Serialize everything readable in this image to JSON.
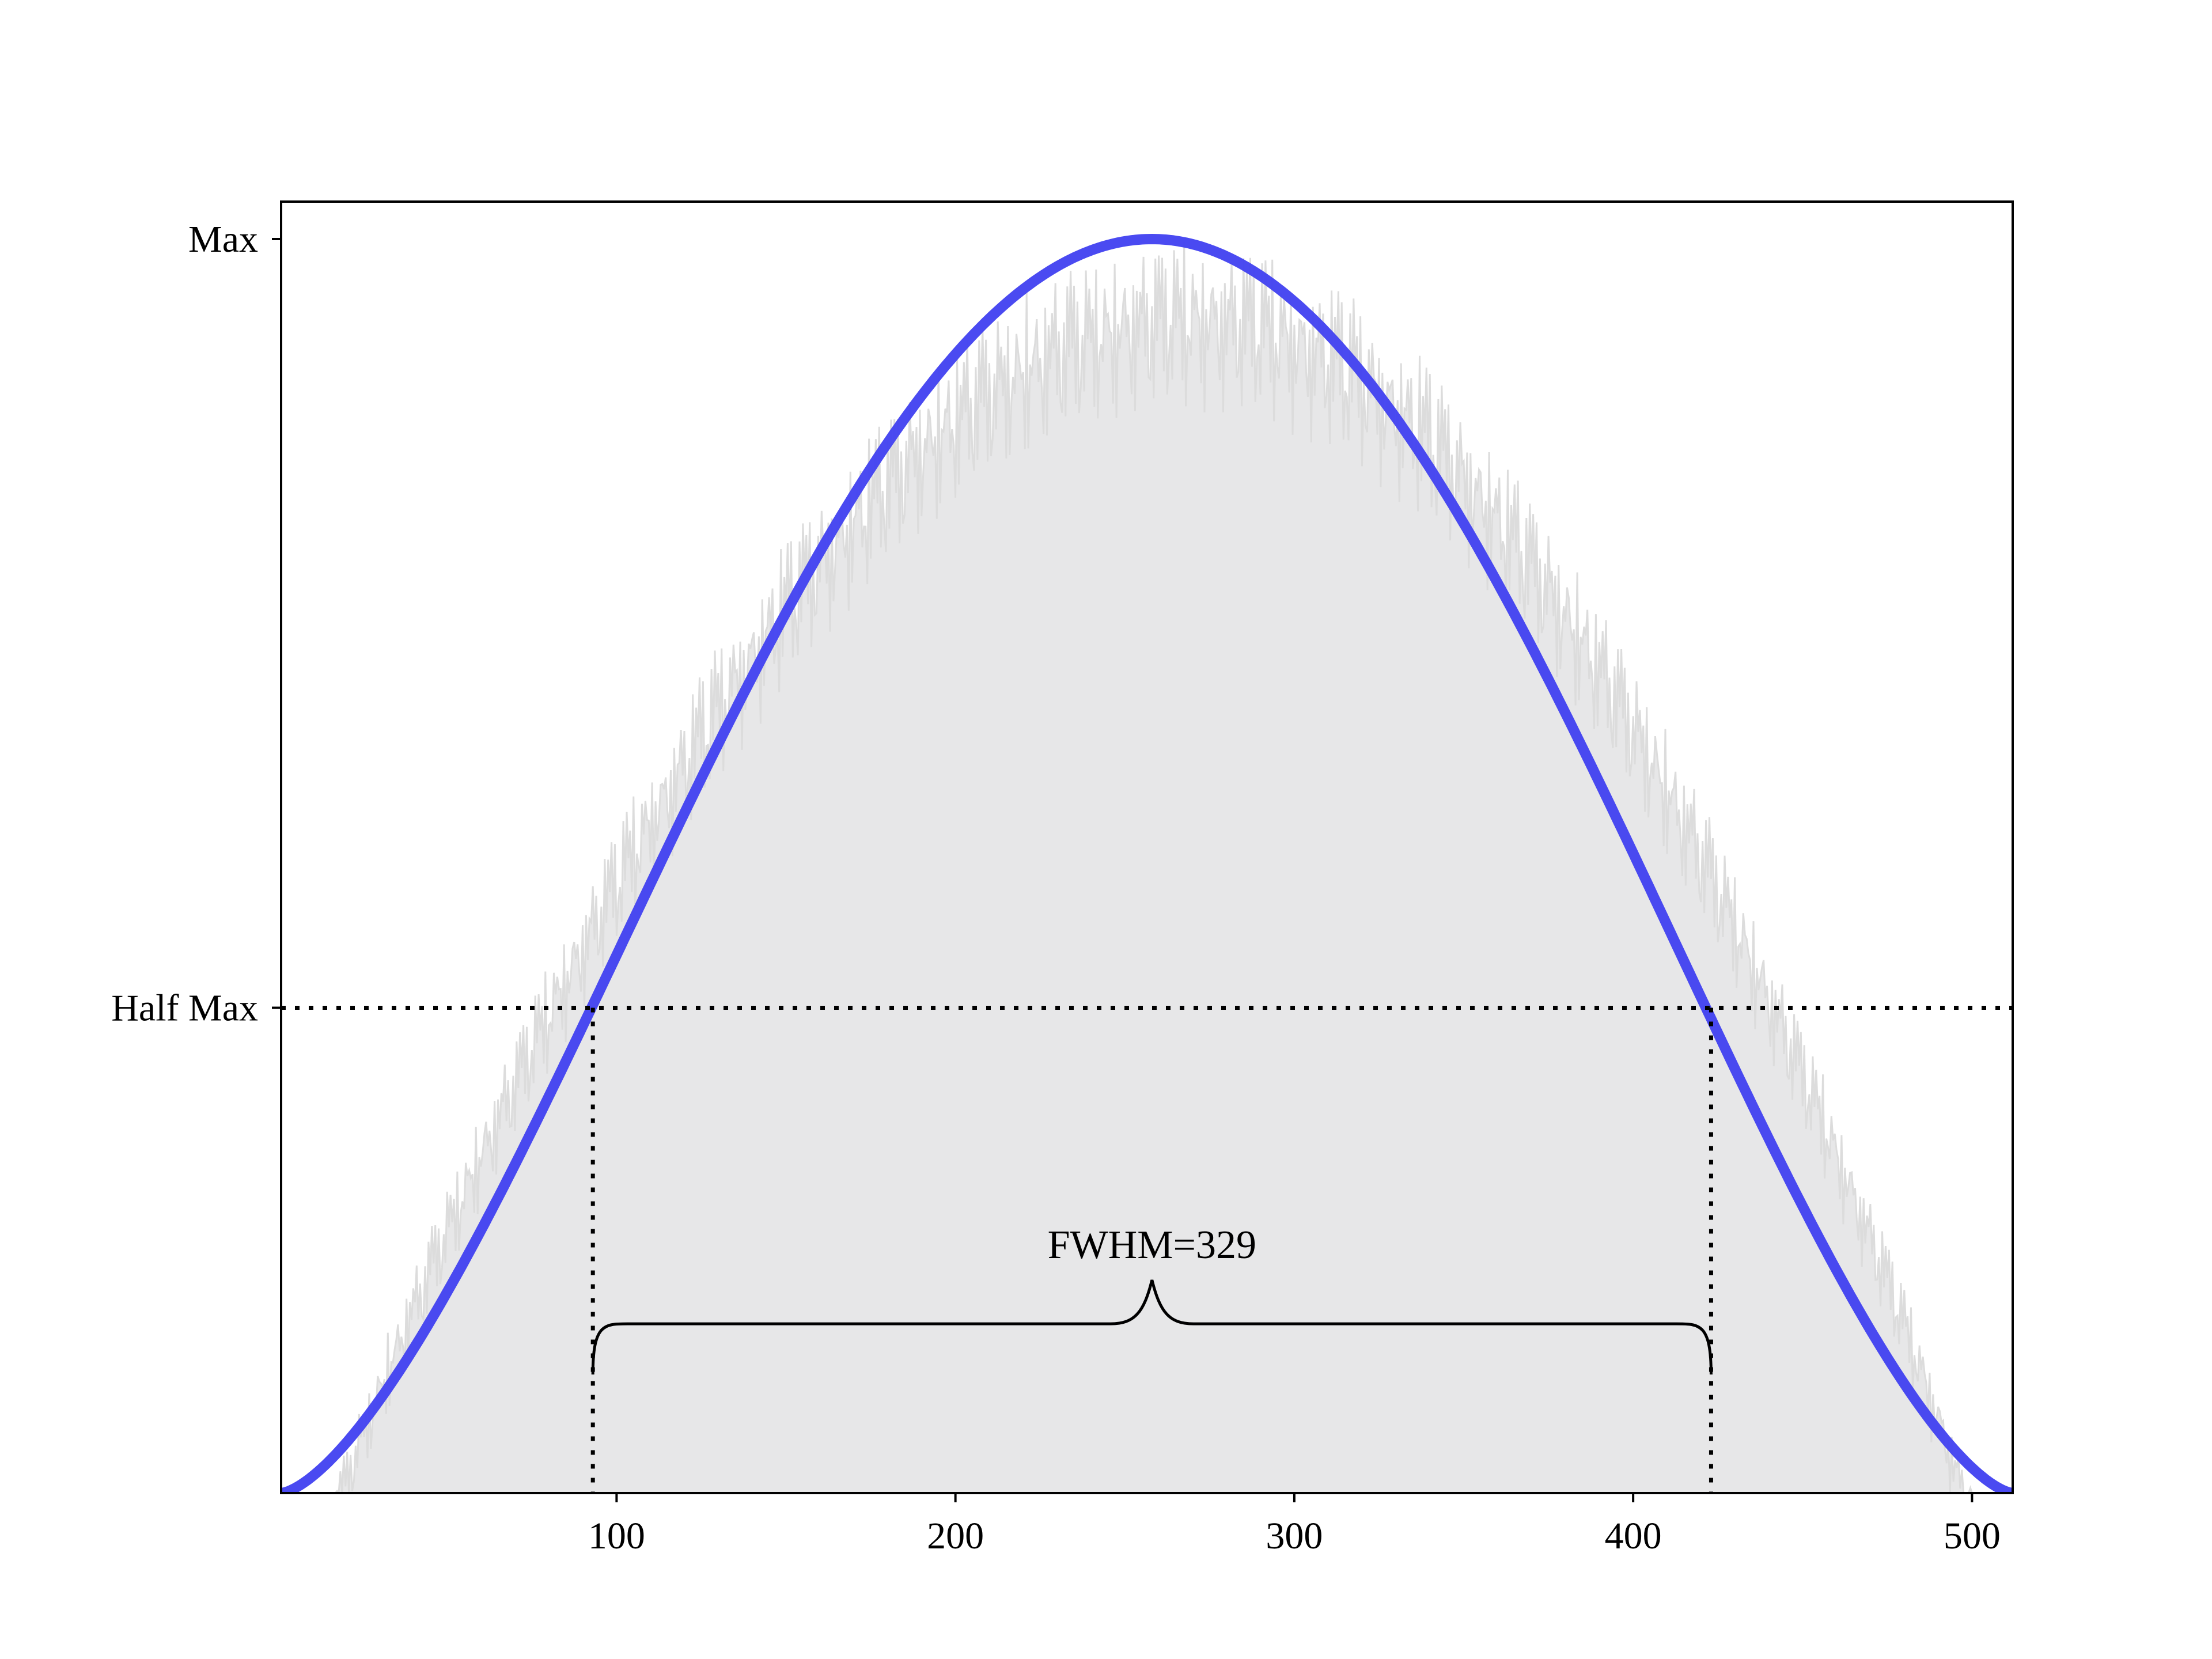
{
  "chart_data": {
    "type": "line",
    "title": "",
    "xlabel": "",
    "ylabel": "",
    "xlim": [
      1,
      512
    ],
    "ylim": [
      0,
      1
    ],
    "grid": false,
    "x_ticks": [
      100,
      200,
      300,
      400,
      500
    ],
    "y_ticks": [
      {
        "value": 1.0,
        "label": "Max"
      },
      {
        "value": 0.387,
        "label": "Half Max"
      }
    ],
    "series": [
      {
        "kind": "noisy-background",
        "color": "#dcdcdc",
        "fill_color": "#e7e7e8",
        "x_range": [
          16,
          500
        ],
        "peak_x": 270,
        "peak_value": 1.0
      },
      {
        "kind": "smooth-fit",
        "color": "#4040f0",
        "x_range": [
          1,
          512
        ],
        "peak_x": 258,
        "peak_value": 1.0,
        "end_value": 0.0
      }
    ],
    "half_max_line": {
      "value": 0.387,
      "style": "dotted",
      "color": "#000000"
    },
    "fwhm_bounds": [
      93,
      423
    ],
    "annotation": {
      "text": "FWHM=329",
      "brace_value": 0.135
    }
  }
}
